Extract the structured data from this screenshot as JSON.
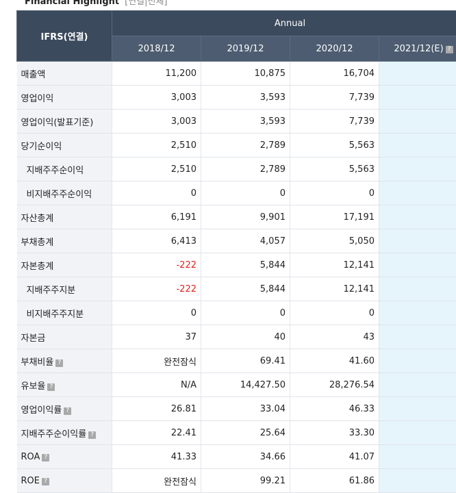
{
  "header": {
    "title": "Financial Highlight",
    "tabs": "[연결|전체]"
  },
  "table": {
    "corner": "IFRS(연결)",
    "group": "Annual",
    "columns": [
      "2018/12",
      "2019/12",
      "2020/12",
      "2021/12(E)"
    ],
    "rows": [
      [
        "매출액",
        "11,200",
        "10,875",
        "16,704"
      ],
      [
        "영업이익",
        "3,003",
        "3,593",
        "7,739"
      ],
      [
        "영업이익(발표기준)",
        "3,003",
        "3,593",
        "7,739"
      ],
      [
        "당기순이익",
        "2,510",
        "2,789",
        "5,563"
      ],
      [
        "지배주주순이익",
        "2,510",
        "2,789",
        "5,563"
      ],
      [
        "비지배주주순이익",
        "0",
        "0",
        "0"
      ],
      [
        "자산총계",
        "6,191",
        "9,901",
        "17,191"
      ],
      [
        "부채총계",
        "6,413",
        "4,057",
        "5,050"
      ],
      [
        "자본총계",
        "-222",
        "5,844",
        "12,141"
      ],
      [
        "지배주주지분",
        "-222",
        "5,844",
        "12,141"
      ],
      [
        "비지배주주지분",
        "0",
        "0",
        "0"
      ],
      [
        "자본금",
        "37",
        "40",
        "43"
      ],
      [
        "부채비율",
        "완전잠식",
        "69.41",
        "41.60"
      ],
      [
        "유보율",
        "N/A",
        "14,427.50",
        "28,276.54"
      ],
      [
        "영업이익률",
        "26.81",
        "33.04",
        "46.33"
      ],
      [
        "지배주주순이익률",
        "22.41",
        "25.64",
        "33.30"
      ],
      [
        "ROA",
        "41.33",
        "34.66",
        "41.07"
      ],
      [
        "ROE",
        "완전잠식",
        "99.21",
        "61.86"
      ]
    ]
  }
}
